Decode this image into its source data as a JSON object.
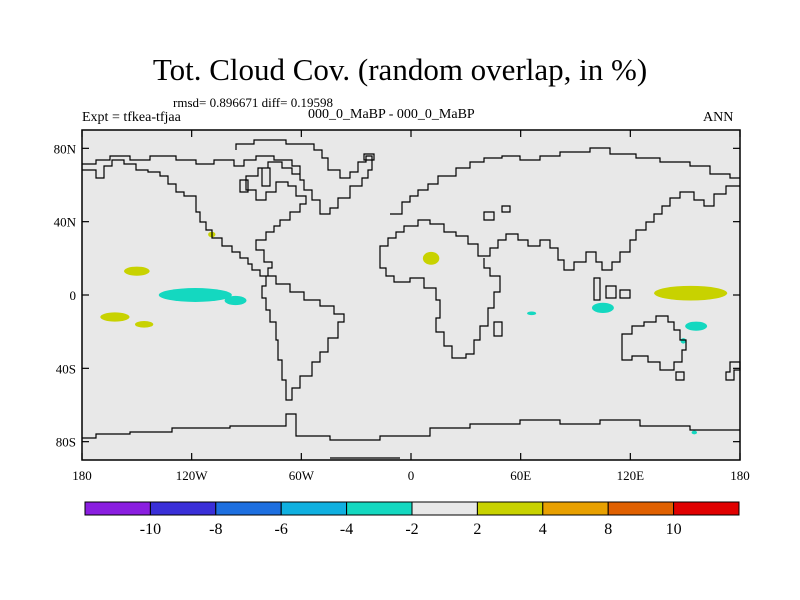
{
  "header": {
    "title": "Tot. Cloud Cov. (random overlap, in %)",
    "stats": "rmsd= 0.896671 diff= 0.19598",
    "experiment": "Expt = tfkea-tfjaa",
    "case": "000_0_MaBP - 000_0_MaBP",
    "season": "ANN"
  },
  "map": {
    "projection": "cylindrical equidistant",
    "lon_range": [
      -180,
      180
    ],
    "lat_range": [
      -90,
      90
    ],
    "background_color": "#e8e8e8",
    "y_ticks": [
      {
        "lat": 80,
        "label": "80N"
      },
      {
        "lat": 40,
        "label": "40N"
      },
      {
        "lat": 0,
        "label": "0"
      },
      {
        "lat": -40,
        "label": "40S"
      },
      {
        "lat": -80,
        "label": "80S"
      }
    ],
    "x_ticks": [
      {
        "lon": -180,
        "label": "180"
      },
      {
        "lon": -120,
        "label": "120W"
      },
      {
        "lon": -60,
        "label": "60W"
      },
      {
        "lon": 0,
        "label": "0"
      },
      {
        "lon": 60,
        "label": "60E"
      },
      {
        "lon": 120,
        "label": "120E"
      },
      {
        "lon": 180,
        "label": "180"
      }
    ]
  },
  "colorbar": {
    "colors": [
      "#8a1ee0",
      "#3a2fd8",
      "#1d6fe0",
      "#10b0e0",
      "#14d8c0",
      "#e8e8e8",
      "#c8d200",
      "#e8a000",
      "#e06000",
      "#e00000"
    ],
    "labels": [
      "-10",
      "-8",
      "-6",
      "-4",
      "-2",
      "2",
      "4",
      "8",
      "10"
    ]
  },
  "regions": [
    {
      "name": "central-pacific-cyan-band",
      "class": "-4 to -2",
      "color": "#14d8c0",
      "lon": -118,
      "lat": 0,
      "dlon": 20,
      "dlat": 3.8
    },
    {
      "name": "eastern-pacific-cyan-patch",
      "class": "-4 to -2",
      "color": "#14d8c0",
      "lon": -96,
      "lat": -3,
      "dlon": 6,
      "dlat": 2.5
    },
    {
      "name": "central-pacific-yellow-patch",
      "class": "2 to 4",
      "color": "#c8d200",
      "lon": -150,
      "lat": 13,
      "dlon": 7,
      "dlat": 2.5
    },
    {
      "name": "south-pacific-yellow-patch",
      "class": "2 to 4",
      "color": "#c8d200",
      "lon": -162,
      "lat": -12,
      "dlon": 8,
      "dlat": 2.5
    },
    {
      "name": "south-pacific-yellow-tail",
      "class": "2 to 4",
      "color": "#c8d200",
      "lon": -146,
      "lat": -16,
      "dlon": 5,
      "dlat": 1.8
    },
    {
      "name": "mexico-yellow-patch",
      "class": "2 to 4",
      "color": "#c8d200",
      "lon": -109,
      "lat": 33,
      "dlon": 2,
      "dlat": 1.5
    },
    {
      "name": "sahara-yellow-patch",
      "class": "2 to 4",
      "color": "#c8d200",
      "lon": 11,
      "lat": 20,
      "dlon": 4.5,
      "dlat": 3.5
    },
    {
      "name": "west-pacific-yellow-band",
      "class": "2 to 4",
      "color": "#c8d200",
      "lon": 153,
      "lat": 1,
      "dlon": 20,
      "dlat": 4
    },
    {
      "name": "indian-ocean-cyan-patch",
      "class": "-4 to -2",
      "color": "#14d8c0",
      "lon": 105,
      "lat": -7,
      "dlon": 6,
      "dlat": 2.8
    },
    {
      "name": "coral-sea-cyan-patch",
      "class": "-4 to -2",
      "color": "#14d8c0",
      "lon": 156,
      "lat": -17,
      "dlon": 6,
      "dlat": 2.5
    },
    {
      "name": "east-australia-cyan-patch",
      "class": "-4 to -2",
      "color": "#14d8c0",
      "lon": 149,
      "lat": -25,
      "dlon": 1.5,
      "dlat": 1.5
    },
    {
      "name": "central-indian-cyan-speck",
      "class": "-4 to -2",
      "color": "#14d8c0",
      "lon": 66,
      "lat": -10,
      "dlon": 2.5,
      "dlat": 1
    },
    {
      "name": "southern-ocean-cyan-speck",
      "class": "-4 to -2",
      "color": "#14d8c0",
      "lon": 155,
      "lat": -75,
      "dlon": 1.5,
      "dlat": 1
    }
  ]
}
